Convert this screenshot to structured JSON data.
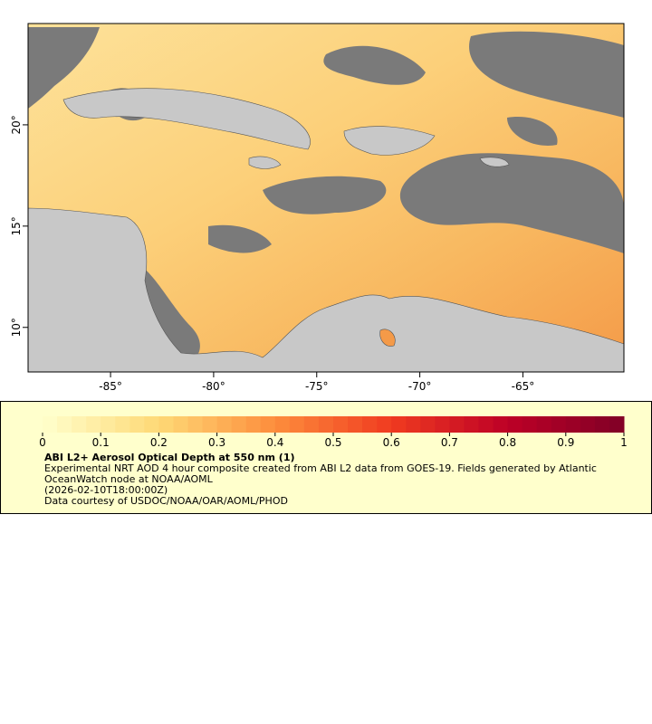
{
  "map": {
    "xlim": [
      -89,
      -60.1
    ],
    "ylim": [
      7.8,
      25
    ],
    "xticks": [
      {
        "value": -85,
        "label": "-85°"
      },
      {
        "value": -80,
        "label": "-80°"
      },
      {
        "value": -75,
        "label": "-75°"
      },
      {
        "value": -70,
        "label": "-70°"
      },
      {
        "value": -65,
        "label": "-65°"
      }
    ],
    "yticks": [
      {
        "value": 10,
        "label": "10°"
      },
      {
        "value": 15,
        "label": "15°"
      },
      {
        "value": 20,
        "label": "20°"
      }
    ]
  },
  "colorbar": {
    "lim": [
      0,
      1
    ],
    "ticks": [
      0,
      0.1,
      0.2,
      0.3,
      0.4,
      0.5,
      0.6,
      0.7,
      0.8,
      0.9,
      1
    ]
  },
  "legend": {
    "title": "ABI L2+ Aerosol Optical Depth at 550 nm (1)",
    "lines": [
      "Experimental NRT AOD 4 hour composite created from ABI L2 data from GOES-19. Fields generated by Atlantic OceanWatch node at NOAA/AOML",
      "(2026-02-10T18:00:00Z)",
      "Data courtesy of USDOC/NOAA/OAR/AOML/PHOD"
    ]
  }
}
